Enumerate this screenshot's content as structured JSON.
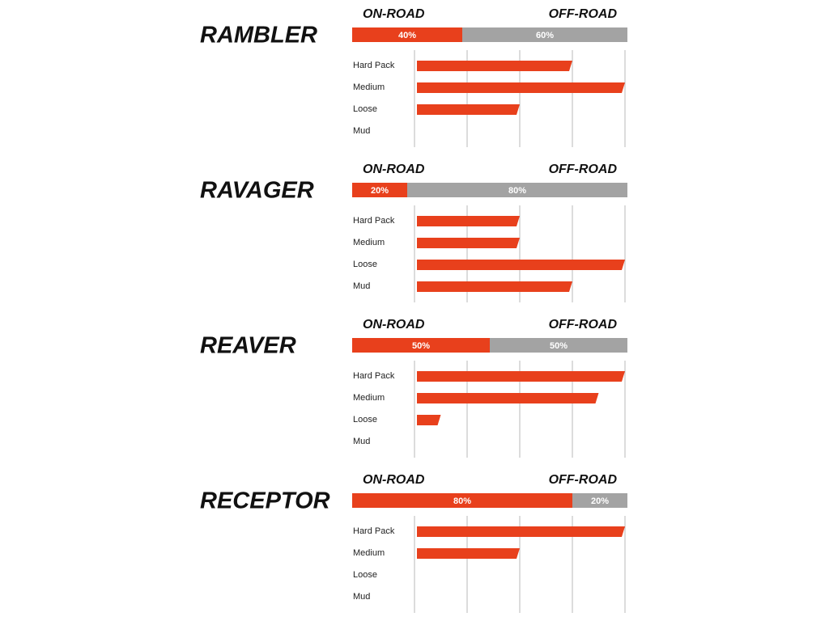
{
  "chart_data": [
    {
      "type": "bar",
      "title": "RAMBLER",
      "split": {
        "type": "stacked-bar",
        "xlim": [
          0,
          100
        ],
        "series": [
          {
            "name": "ON-ROAD",
            "color": "#e8401c",
            "values": [
              40
            ],
            "value_labels": [
              "40%"
            ]
          },
          {
            "name": "OFF-ROAD",
            "color": "#a3a3a3",
            "values": [
              60
            ],
            "value_labels": [
              "60%"
            ]
          }
        ]
      },
      "categories": [
        "Hard Pack",
        "Medium",
        "Loose",
        "Mud"
      ],
      "values": [
        3,
        4,
        2,
        0
      ],
      "color": "#e8401c",
      "xlim": [
        0,
        4
      ],
      "xticks": [
        0,
        1,
        2,
        3,
        4
      ],
      "grid": true
    },
    {
      "type": "bar",
      "title": "RAVAGER",
      "split": {
        "type": "stacked-bar",
        "xlim": [
          0,
          100
        ],
        "series": [
          {
            "name": "ON-ROAD",
            "color": "#e8401c",
            "values": [
              20
            ],
            "value_labels": [
              "20%"
            ]
          },
          {
            "name": "OFF-ROAD",
            "color": "#a3a3a3",
            "values": [
              80
            ],
            "value_labels": [
              "80%"
            ]
          }
        ]
      },
      "categories": [
        "Hard Pack",
        "Medium",
        "Loose",
        "Mud"
      ],
      "values": [
        2,
        2,
        4,
        3
      ],
      "color": "#e8401c",
      "xlim": [
        0,
        4
      ],
      "xticks": [
        0,
        1,
        2,
        3,
        4
      ],
      "grid": true
    },
    {
      "type": "bar",
      "title": "REAVER",
      "split": {
        "type": "stacked-bar",
        "xlim": [
          0,
          100
        ],
        "series": [
          {
            "name": "ON-ROAD",
            "color": "#e8401c",
            "values": [
              50
            ],
            "value_labels": [
              "50%"
            ]
          },
          {
            "name": "OFF-ROAD",
            "color": "#a3a3a3",
            "values": [
              50
            ],
            "value_labels": [
              "50%"
            ]
          }
        ]
      },
      "categories": [
        "Hard Pack",
        "Medium",
        "Loose",
        "Mud"
      ],
      "values": [
        4,
        3.5,
        0.5,
        0
      ],
      "color": "#e8401c",
      "xlim": [
        0,
        4
      ],
      "xticks": [
        0,
        1,
        2,
        3,
        4
      ],
      "grid": true
    },
    {
      "type": "bar",
      "title": "RECEPTOR",
      "split": {
        "type": "stacked-bar",
        "xlim": [
          0,
          100
        ],
        "series": [
          {
            "name": "ON-ROAD",
            "color": "#e8401c",
            "values": [
              80
            ],
            "value_labels": [
              "80%"
            ]
          },
          {
            "name": "OFF-ROAD",
            "color": "#a3a3a3",
            "values": [
              20
            ],
            "value_labels": [
              "20%"
            ]
          }
        ]
      },
      "categories": [
        "Hard Pack",
        "Medium",
        "Loose",
        "Mud"
      ],
      "values": [
        4,
        2,
        0,
        0
      ],
      "color": "#e8401c",
      "xlim": [
        0,
        4
      ],
      "xticks": [
        0,
        1,
        2,
        3,
        4
      ],
      "grid": true
    }
  ]
}
